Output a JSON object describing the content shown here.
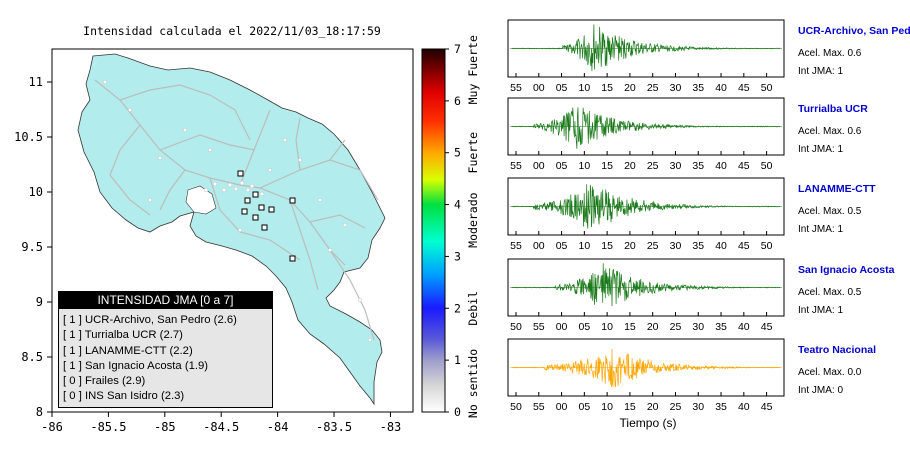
{
  "map": {
    "title": "Intensidad calculada el 2022/11/03_18:17:59",
    "x_ticks": [
      "-86",
      "-85.5",
      "-85",
      "-84.5",
      "-84",
      "-83.5",
      "-83"
    ],
    "y_ticks": [
      "11",
      "10.5",
      "10",
      "9.5",
      "9",
      "8.5",
      "8"
    ],
    "xlim": [
      -86,
      -82.8
    ],
    "ylim": [
      8,
      11.3
    ],
    "colors": {
      "land": "#b3ecec",
      "roads": "#bcbcbc",
      "ocean": "#ffffff"
    }
  },
  "legend": {
    "title": "INTENSIDAD JMA [0 a 7]",
    "items": [
      "[ 1 ] UCR-Archivo, San Pedro (2.6)",
      "[ 1 ] Turrialba UCR (2.7)",
      "[ 1 ] LANAMME-CTT (2.2)",
      "[ 1 ] San Ignacio Acosta (1.9)",
      "[ 0 ] Frailes (2.9)",
      "[ 0 ] INS San Isidro (2.3)"
    ]
  },
  "colorbar": {
    "ticks": [
      "7",
      "6",
      "5",
      "4",
      "3",
      "2",
      "1",
      "0"
    ],
    "range": [
      0,
      7
    ],
    "labels": [
      "Muy Fuerte",
      "Fuerte",
      "Moderado",
      "Debil",
      "No sentido"
    ]
  },
  "seismograms": {
    "xlabel": "Tiempo (s)",
    "traces": [
      {
        "name": "UCR-Archivo, San Pedro",
        "accel": "Acel. Max. 0.6",
        "jma": "Int JMA: 1",
        "color": "#1a7a1a",
        "ticks": [
          "55",
          "00",
          "05",
          "10",
          "15",
          "20",
          "25",
          "30",
          "35",
          "40",
          "45",
          "50"
        ],
        "onset": 0.19,
        "peak": 0.3,
        "amp": 1.0
      },
      {
        "name": "Turrialba UCR",
        "accel": "Acel. Max. 0.6",
        "jma": "Int JMA: 1",
        "color": "#1a7a1a",
        "ticks": [
          "55",
          "00",
          "05",
          "10",
          "15",
          "20",
          "25",
          "30",
          "35",
          "40",
          "45",
          "50"
        ],
        "onset": 0.08,
        "peak": 0.24,
        "amp": 0.9
      },
      {
        "name": "LANAMME-CTT",
        "accel": "Acel. Max. 0.5",
        "jma": "Int JMA: 1",
        "color": "#1a7a1a",
        "ticks": [
          "55",
          "00",
          "05",
          "10",
          "15",
          "20",
          "25",
          "30",
          "35",
          "40",
          "45",
          "50"
        ],
        "onset": 0.08,
        "peak": 0.3,
        "amp": 1.0
      },
      {
        "name": "San Ignacio Acosta",
        "accel": "Acel. Max. 0.5",
        "jma": "Int JMA: 1",
        "color": "#1a7a1a",
        "ticks": [
          "50",
          "55",
          "00",
          "05",
          "10",
          "15",
          "20",
          "25",
          "30",
          "35",
          "40",
          "45"
        ],
        "onset": 0.16,
        "peak": 0.34,
        "amp": 0.95
      },
      {
        "name": "Teatro Nacional",
        "accel": "Acel. Max. 0.0",
        "jma": "Int JMA: 0",
        "color": "#ffa500",
        "ticks": [
          "50",
          "55",
          "00",
          "05",
          "10",
          "15",
          "20",
          "25",
          "30",
          "35",
          "40",
          "45"
        ],
        "onset": 0.12,
        "peak": 0.38,
        "amp": 0.8
      }
    ]
  }
}
